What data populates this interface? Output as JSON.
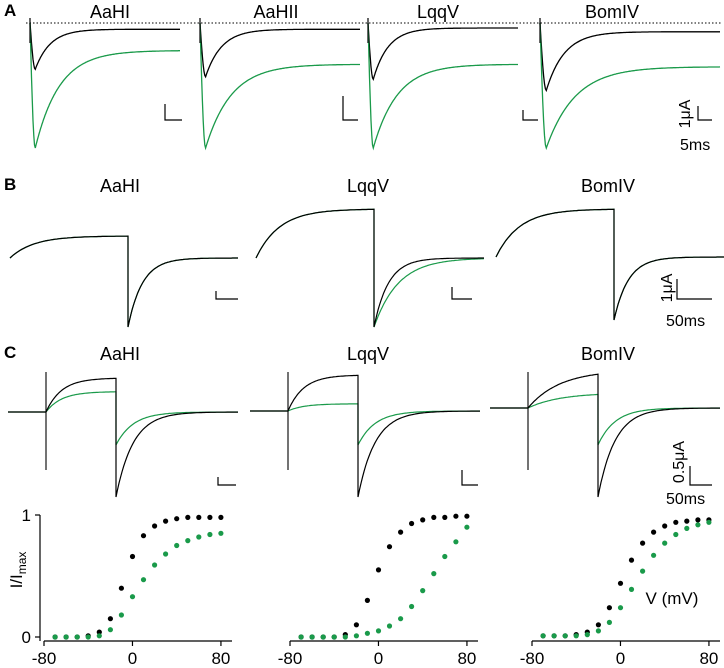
{
  "colors": {
    "control": "#000000",
    "toxin": "#1a9a4a"
  },
  "panels": {
    "A": {
      "label": "A",
      "titles": [
        "AaHI",
        "AaHII",
        "LqqV",
        "BomIV"
      ],
      "scale": {
        "current": "1μA",
        "time": "5ms"
      },
      "baseline": "dotted zero-current line"
    },
    "B": {
      "label": "B",
      "titles": [
        "AaHI",
        "LqqV",
        "BomIV"
      ],
      "scale": {
        "current": "1μA",
        "time": "50ms"
      }
    },
    "C": {
      "label": "C",
      "titles": [
        "AaHI",
        "LqqV",
        "BomIV"
      ],
      "scale": {
        "current": "0.5μA",
        "time": "50ms"
      }
    }
  },
  "chart_data": [
    {
      "type": "line",
      "panel": "A",
      "description_visible": "sodium current traces, control (black) and toxin (green)",
      "series": [
        {
          "toxin": "AaHI",
          "control_peak_rel": 0.37,
          "toxin_peak_rel": 1.0,
          "control_steady_rel": 0.05,
          "toxin_steady_rel": 0.22
        },
        {
          "toxin": "AaHII",
          "control_peak_rel": 0.43,
          "toxin_peak_rel": 1.0,
          "control_steady_rel": 0.05,
          "toxin_steady_rel": 0.33
        },
        {
          "toxin": "LqqV",
          "control_peak_rel": 0.45,
          "toxin_peak_rel": 1.0,
          "control_steady_rel": 0.04,
          "toxin_steady_rel": 0.33
        },
        {
          "toxin": "BomIV",
          "control_peak_rel": 0.54,
          "toxin_peak_rel": 1.0,
          "control_steady_rel": 0.07,
          "toxin_steady_rel": 0.35
        }
      ]
    },
    {
      "type": "line",
      "panel": "B",
      "series": [
        {
          "toxin": "AaHI"
        },
        {
          "toxin": "LqqV"
        },
        {
          "toxin": "BomIV"
        }
      ]
    },
    {
      "type": "line",
      "panel": "C",
      "series": [
        {
          "toxin": "AaHI",
          "control_plateau_rel": 1.0,
          "toxin_plateau_rel": 0.6
        },
        {
          "toxin": "LqqV",
          "control_plateau_rel": 1.0,
          "toxin_plateau_rel": 0.2
        },
        {
          "toxin": "BomIV",
          "control_plateau_rel": 1.0,
          "toxin_plateau_rel": 0.4
        }
      ]
    },
    {
      "type": "scatter",
      "panel": "C-bottom",
      "ylabel": "I/I",
      "ylabel_sub": "max",
      "xlabel": "V (mV)",
      "xlim": [
        -80,
        90
      ],
      "ylim": [
        0,
        1
      ],
      "xticks": [
        -80,
        0,
        80
      ],
      "yticks": [
        0,
        1
      ],
      "x": [
        -70,
        -60,
        -50,
        -40,
        -30,
        -20,
        -10,
        0,
        10,
        20,
        30,
        40,
        50,
        60,
        70,
        80
      ],
      "plots": [
        {
          "toxin": "AaHI",
          "series": [
            {
              "name": "control",
              "values": [
                0.0,
                0.0,
                0.0,
                0.01,
                0.04,
                0.15,
                0.4,
                0.66,
                0.83,
                0.91,
                0.95,
                0.97,
                0.98,
                0.98,
                0.98,
                0.98
              ]
            },
            {
              "name": "toxin",
              "values": [
                0.0,
                0.0,
                0.0,
                0.0,
                0.01,
                0.06,
                0.18,
                0.33,
                0.47,
                0.59,
                0.68,
                0.75,
                0.79,
                0.82,
                0.84,
                0.85
              ]
            }
          ]
        },
        {
          "toxin": "LqqV",
          "series": [
            {
              "name": "control",
              "values": [
                0.0,
                0.0,
                0.0,
                0.0,
                0.02,
                0.1,
                0.3,
                0.55,
                0.74,
                0.86,
                0.93,
                0.96,
                0.98,
                0.98,
                0.99,
                0.99
              ]
            },
            {
              "name": "toxin",
              "values": [
                0.0,
                0.0,
                0.0,
                0.0,
                0.0,
                0.01,
                0.03,
                0.05,
                0.09,
                0.15,
                0.25,
                0.38,
                0.52,
                0.66,
                0.78,
                0.9
              ]
            }
          ]
        },
        {
          "toxin": "BomIV",
          "series": [
            {
              "name": "control",
              "values": [
                0.01,
                0.01,
                0.01,
                0.02,
                0.04,
                0.1,
                0.24,
                0.44,
                0.63,
                0.77,
                0.86,
                0.91,
                0.94,
                0.95,
                0.96,
                0.96
              ]
            },
            {
              "name": "toxin",
              "values": [
                0.01,
                0.01,
                0.01,
                0.01,
                0.02,
                0.05,
                0.12,
                0.24,
                0.39,
                0.54,
                0.67,
                0.77,
                0.84,
                0.89,
                0.92,
                0.94
              ]
            }
          ]
        }
      ]
    }
  ]
}
